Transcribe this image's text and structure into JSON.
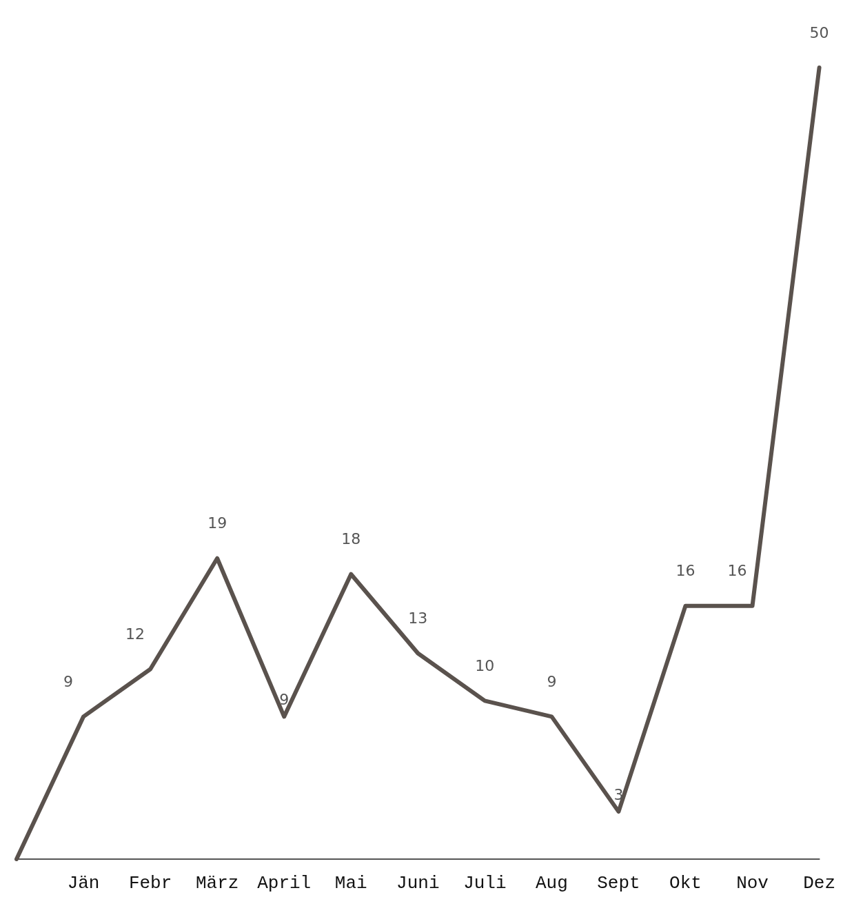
{
  "chart_data": {
    "type": "line",
    "categories": [
      null,
      "Jän",
      "Febr",
      "März",
      "April",
      "Mai",
      "Juni",
      "Juli",
      "Aug",
      "Sept",
      "Okt",
      "Nov",
      "Dez"
    ],
    "values": [
      0,
      9,
      12,
      19,
      9,
      18,
      13,
      10,
      9,
      3,
      16,
      16,
      50
    ],
    "value_labels": [
      null,
      "9",
      "12",
      "19",
      "9",
      "18",
      "13",
      "10",
      "9",
      "3",
      "16",
      "16",
      "50"
    ],
    "color": "#5a524d",
    "marker": "none",
    "line_style": "solid",
    "grid": false,
    "tick_labels": "x"
  }
}
